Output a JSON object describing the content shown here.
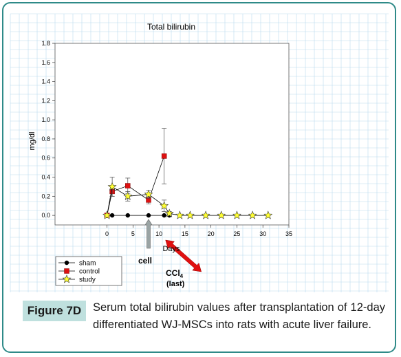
{
  "figure": {
    "label": "Figure 7D",
    "caption": "Serum total bilirubin values after transplantation of 12-day differentiated WJ-MSCs into rats with acute liver failure."
  },
  "colors": {
    "border": "#2e8a88",
    "label_bg": "#bfe0de",
    "grid": "#b9d9ee",
    "sham": "#000000",
    "control": "#dd1111",
    "study": "#ffff33",
    "arrow_red": "#e01010",
    "arrow_gray": "#9aa4a4"
  },
  "chart_data": {
    "type": "line",
    "title": "Total bilirubin",
    "xlabel": "Days",
    "ylabel": "mg/dl",
    "xlim": [
      -10,
      35
    ],
    "ylim": [
      -0.1,
      1.8
    ],
    "xticks": [
      0,
      5,
      10,
      15,
      20,
      25,
      30,
      35
    ],
    "yticks": [
      0.0,
      0.2,
      0.4,
      0.6,
      0.8,
      1.0,
      1.2,
      1.4,
      1.6,
      1.8
    ],
    "ytick_labels": [
      "0.0",
      "0.2",
      "0.4",
      "0.6",
      "0.8",
      "1.0",
      "1.2",
      "1.4",
      "1.6",
      "1.8"
    ],
    "legend_placement": "bottom-left",
    "series": [
      {
        "name": "sham",
        "marker": "circle",
        "x": [
          0,
          1,
          4,
          8,
          11,
          12
        ],
        "y": [
          0.0,
          0.0,
          0.0,
          0.0,
          0.0,
          0.0
        ],
        "err": [
          0,
          0,
          0,
          0,
          0,
          0
        ]
      },
      {
        "name": "control",
        "marker": "square",
        "x": [
          0,
          1,
          4,
          8,
          11
        ],
        "y": [
          0.0,
          0.25,
          0.31,
          0.16,
          0.62
        ],
        "err": [
          0,
          0.05,
          0.08,
          0.04,
          0.29
        ]
      },
      {
        "name": "study",
        "marker": "star",
        "x": [
          0,
          1,
          4,
          8,
          11,
          12,
          14,
          16,
          19,
          22,
          25,
          28,
          31
        ],
        "y": [
          0.0,
          0.3,
          0.2,
          0.22,
          0.1,
          0.02,
          0.0,
          0.0,
          0.0,
          0.0,
          0.0,
          0.0,
          0.0
        ],
        "err": [
          0,
          0.1,
          0.05,
          0.04,
          0.06,
          0.02,
          0,
          0,
          0,
          0,
          0,
          0,
          0
        ]
      }
    ],
    "annotations": [
      {
        "id": "cell",
        "text": "cell",
        "x": 8
      },
      {
        "id": "ccl4",
        "text": "CCl",
        "subscript": "4",
        "text2": "(last)",
        "x": 11
      }
    ]
  }
}
